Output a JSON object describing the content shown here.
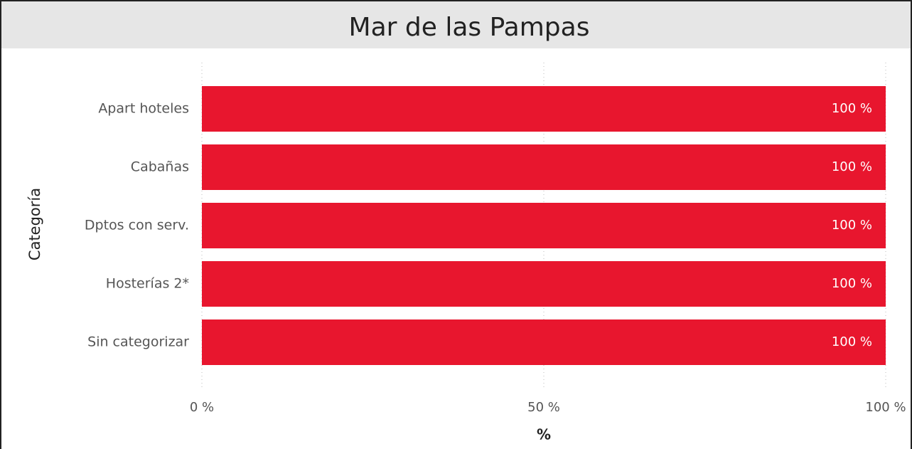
{
  "chart_data": {
    "type": "barh",
    "title": "Mar de las Pampas",
    "xlabel": "%",
    "ylabel": "Categoría",
    "categories": [
      "Apart hoteles",
      "Cabañas",
      "Dptos con serv.",
      "Hosterías 2*",
      "Sin categorizar"
    ],
    "values": [
      100,
      100,
      100,
      100,
      100
    ],
    "value_labels": [
      "100 %",
      "100 %",
      "100 %",
      "100 %",
      "100 %"
    ],
    "color": "#e8162e",
    "xlim": [
      0,
      100
    ],
    "xticks": [
      {
        "value": 0,
        "label": "0 %"
      },
      {
        "value": 50,
        "label": "50 %"
      },
      {
        "value": 100,
        "label": "100 %"
      }
    ],
    "grid": true
  }
}
